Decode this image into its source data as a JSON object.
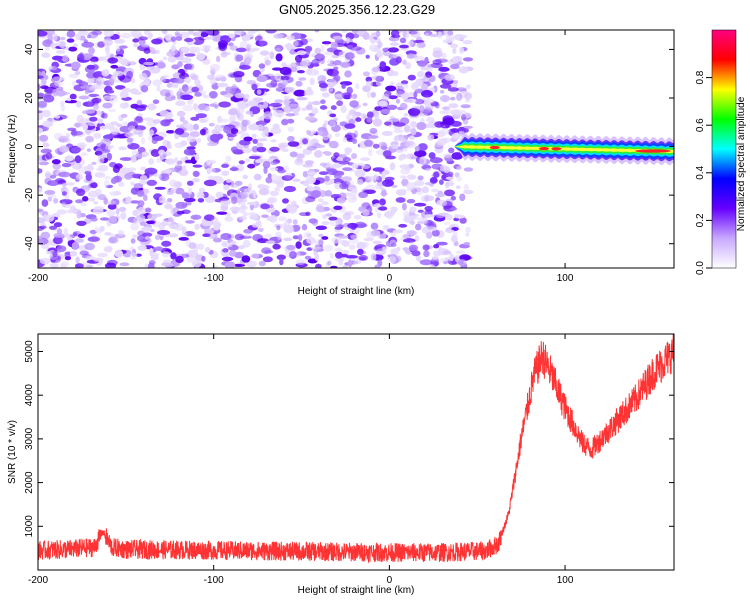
{
  "title": "GN05.2025.356.12.23.G29",
  "chart_data": [
    {
      "type": "heatmap",
      "xlabel": "Height of straight line (km)",
      "ylabel": "Frequency (Hz)",
      "xlim": [
        -200,
        162
      ],
      "ylim": [
        -50,
        48
      ],
      "x_ticks": [
        -200,
        -100,
        0,
        100
      ],
      "y_ticks": [
        -40,
        -20,
        0,
        20,
        40
      ],
      "noise_region": {
        "x_range": [
          -200,
          45
        ],
        "freq_range": [
          -50,
          48
        ]
      },
      "signal_band": {
        "x_range": [
          37,
          162
        ],
        "freq_start": 0,
        "freq_end": -2,
        "peaks_at": [
          60,
          88,
          95,
          150
        ]
      },
      "colorbar": {
        "label": "Normalized spectral amplitude",
        "range": [
          0,
          1
        ],
        "ticks": [
          "0.0",
          "0.2",
          "0.4",
          "0.6",
          "0.8"
        ],
        "colors": [
          "#ffffff",
          "#c8a8ff",
          "#6600ff",
          "#0000ff",
          "#00ffff",
          "#00ff00",
          "#ffff00",
          "#ff0000",
          "#ff0080"
        ]
      }
    },
    {
      "type": "line",
      "color": "#ff3333",
      "xlabel": "Height of straight line (km)",
      "ylabel": "SNR (10 * v/v)",
      "xlim": [
        -200,
        162
      ],
      "ylim": [
        0,
        5400
      ],
      "x_ticks": [
        -200,
        -100,
        0,
        100
      ],
      "y_ticks": [
        1000,
        2000,
        3000,
        4000,
        5000
      ],
      "envelope": {
        "x": [
          -200,
          -180,
          -168,
          -163,
          -158,
          -150,
          -120,
          -80,
          -40,
          0,
          30,
          55,
          62,
          68,
          75,
          82,
          87,
          92,
          100,
          110,
          115,
          125,
          140,
          150,
          162
        ],
        "y": [
          450,
          480,
          520,
          880,
          520,
          470,
          460,
          440,
          420,
          400,
          400,
          440,
          600,
          1300,
          3000,
          4400,
          4900,
          4500,
          3700,
          2900,
          2750,
          3200,
          3900,
          4500,
          5000
        ]
      }
    }
  ]
}
